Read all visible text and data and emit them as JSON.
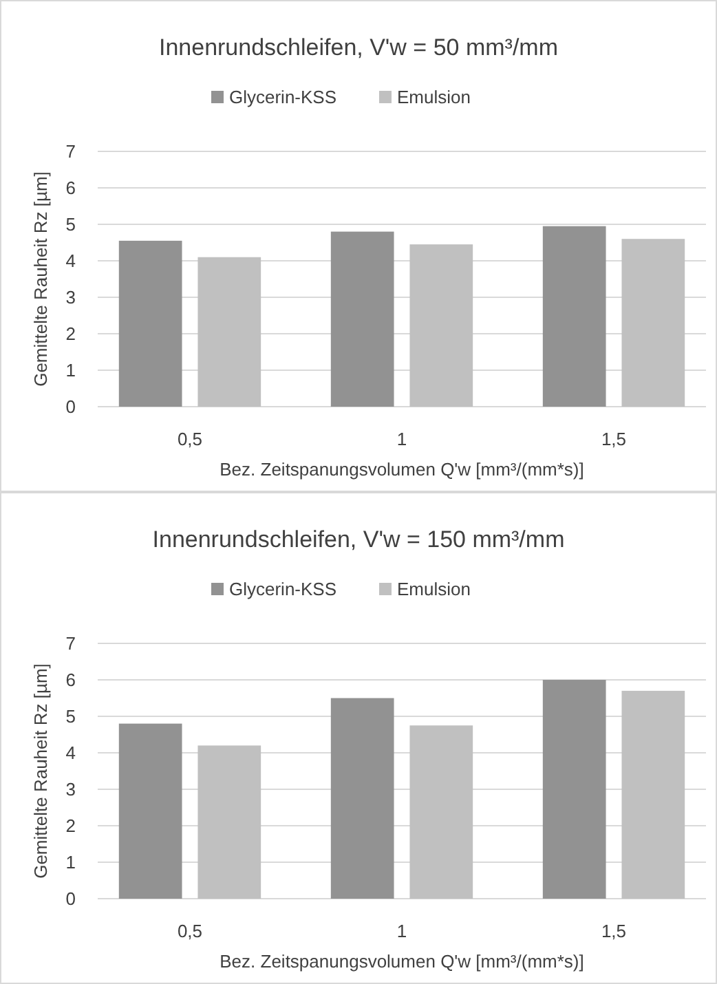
{
  "chart_data": [
    {
      "type": "bar",
      "title": "Innenrundschleifen, V'w = 50 mm³/mm",
      "xlabel": "Bez. Zeitspanungsvolumen Q'w [mm³/(mm*s)]",
      "ylabel": "Gemittelte Rauheit Rz [µm]",
      "categories": [
        "0,5",
        "1",
        "1,5"
      ],
      "series": [
        {
          "name": "Glycerin-KSS",
          "color": "#929292",
          "values": [
            4.55,
            4.8,
            4.95
          ]
        },
        {
          "name": "Emulsion",
          "color": "#c0c0c0",
          "values": [
            4.1,
            4.45,
            4.6
          ]
        }
      ],
      "ylim": [
        0,
        7
      ],
      "yticks": [
        0,
        1,
        2,
        3,
        4,
        5,
        6,
        7
      ],
      "grid": "y",
      "legend": "top"
    },
    {
      "type": "bar",
      "title": "Innenrundschleifen, V'w = 150 mm³/mm",
      "xlabel": "Bez. Zeitspanungsvolumen Q'w [mm³/(mm*s)]",
      "ylabel": "Gemittelte Rauheit Rz [µm]",
      "categories": [
        "0,5",
        "1",
        "1,5"
      ],
      "series": [
        {
          "name": "Glycerin-KSS",
          "color": "#929292",
          "values": [
            4.8,
            5.5,
            6.0
          ]
        },
        {
          "name": "Emulsion",
          "color": "#c0c0c0",
          "values": [
            4.2,
            4.75,
            5.7
          ]
        }
      ],
      "ylim": [
        0,
        7
      ],
      "yticks": [
        0,
        1,
        2,
        3,
        4,
        5,
        6,
        7
      ],
      "grid": "y",
      "legend": "top"
    }
  ]
}
